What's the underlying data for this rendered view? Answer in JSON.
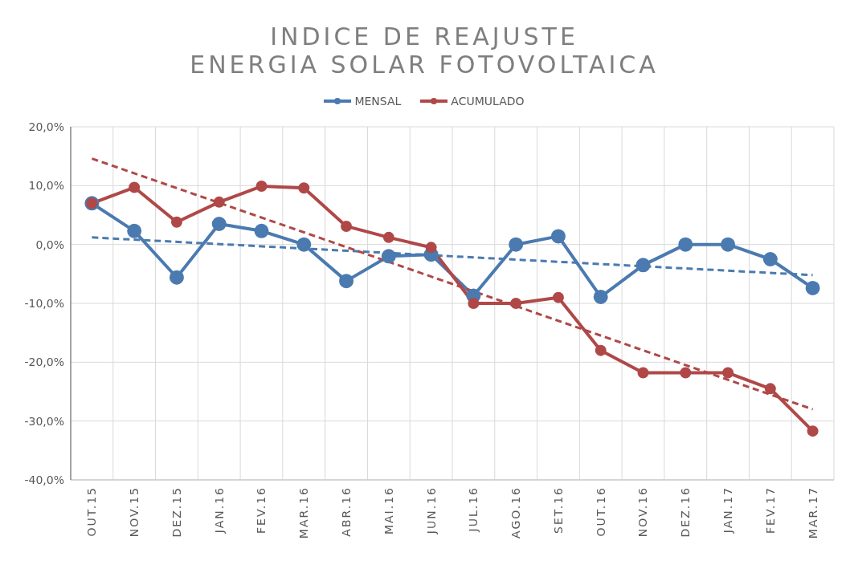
{
  "chart_data": {
    "type": "line",
    "title": "INDICE DE REAJUSTE\nENERGIA SOLAR FOTOVOLTAICA",
    "categories": [
      "OUT.15",
      "NOV.15",
      "DEZ.15",
      "JAN.16",
      "FEV.16",
      "MAR.16",
      "ABR.16",
      "MAI.16",
      "JUN.16",
      "JUL.16",
      "AGO.16",
      "SET.16",
      "OUT.16",
      "NOV.16",
      "DEZ.16",
      "JAN.17",
      "FEV.17",
      "MAR.17"
    ],
    "series": [
      {
        "name": "MENSAL",
        "color": "#4a7ab0",
        "values": [
          7.0,
          2.3,
          -5.6,
          3.5,
          2.3,
          0.0,
          -6.2,
          -2.0,
          -1.7,
          -8.7,
          0.0,
          1.4,
          -8.9,
          -3.5,
          0.0,
          0.0,
          -2.5,
          -7.4
        ]
      },
      {
        "name": "ACUMULADO",
        "color": "#b04848",
        "values": [
          7.0,
          9.7,
          3.8,
          7.2,
          9.9,
          9.6,
          3.1,
          1.2,
          -0.5,
          -10.0,
          -10.0,
          -9.0,
          -18.0,
          -21.8,
          -21.8,
          -21.8,
          -24.5,
          -31.7
        ]
      },
      {
        "type": "line",
        "color": "#4a7ab0",
        "x": [
          "OUT.15",
          "MAR.17"
        ],
        "values": [
          1.2,
          -5.2
        ],
        "line_style": "dashed",
        "marker": "none"
      },
      {
        "type": "line",
        "color": "#b04848",
        "x": [
          "OUT.15",
          "MAR.17"
        ],
        "values": [
          14.6,
          -28.0
        ],
        "line_style": "dashed",
        "marker": "none"
      }
    ],
    "ylim": [
      -40,
      20
    ],
    "yticks": [
      {
        "value": -40,
        "label": "-40,0%"
      },
      {
        "value": -30,
        "label": "-30,0%"
      },
      {
        "value": -20,
        "label": "-20,0%"
      },
      {
        "value": -10,
        "label": "-10,0%"
      },
      {
        "value": 0,
        "label": "0,0%"
      },
      {
        "value": 10,
        "label": "10,0%"
      },
      {
        "value": 20,
        "label": "20,0%"
      }
    ],
    "grid": true,
    "legend": "top",
    "marker": "circle",
    "line_style": "solid"
  }
}
